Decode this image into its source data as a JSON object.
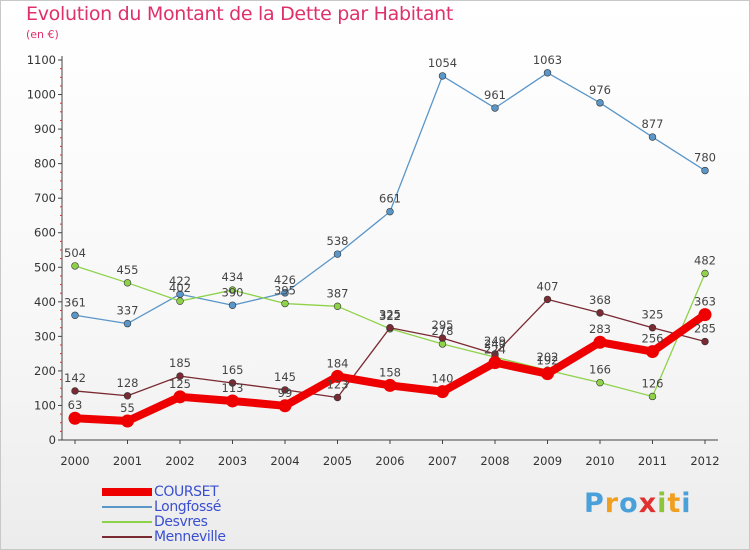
{
  "header": {
    "title": "Evolution du Montant de la Dette par Habitant",
    "subtitle": "(en €)"
  },
  "chart_data": {
    "type": "line",
    "title": "Evolution du Montant de la Dette par Habitant",
    "subtitle": "(en €)",
    "xlabel": "",
    "ylabel": "",
    "x": [
      "2000",
      "2001",
      "2002",
      "2003",
      "2004",
      "2005",
      "2006",
      "2007",
      "2008",
      "2009",
      "2010",
      "2011",
      "2012"
    ],
    "y_ticks": [
      "0",
      "100",
      "200",
      "300",
      "400",
      "500",
      "600",
      "700",
      "800",
      "900",
      "1000",
      "1100"
    ],
    "ylim": [
      0,
      1100
    ],
    "grid": false,
    "legend_position": "bottom-left",
    "series": [
      {
        "name": "COURSET",
        "color": "#ee0000",
        "thick": true,
        "values": [
          63,
          55,
          125,
          113,
          99,
          184,
          158,
          140,
          224,
          192,
          283,
          256,
          363
        ],
        "labels": [
          "63",
          "55",
          "125",
          "113",
          "99",
          "184",
          "158",
          "140",
          "224",
          "192",
          "283",
          "256",
          "363"
        ]
      },
      {
        "name": "Longfossé",
        "color": "#5b96c8",
        "thick": false,
        "values": [
          361,
          337,
          422,
          390,
          426,
          538,
          661,
          1054,
          961,
          1063,
          976,
          877,
          780
        ],
        "labels": [
          "361",
          "337",
          "422",
          "390",
          "426",
          "538",
          "661",
          "1054",
          "961",
          "1063",
          "976",
          "877",
          "780"
        ]
      },
      {
        "name": "Desvres",
        "color": "#8ed24a",
        "thick": false,
        "values": [
          504,
          455,
          402,
          434,
          395,
          387,
          322,
          278,
          240,
          202,
          166,
          126,
          482
        ],
        "labels": [
          "504",
          "455",
          "402",
          "434",
          "395",
          "387",
          "322",
          "278",
          "240",
          "202",
          "166",
          "126",
          "482"
        ]
      },
      {
        "name": "Menneville",
        "color": "#7a2a32",
        "thick": false,
        "values": [
          142,
          128,
          185,
          165,
          145,
          123,
          325,
          295,
          249,
          407,
          368,
          325,
          285
        ],
        "labels": [
          "142",
          "128",
          "185",
          "165",
          "145",
          "123",
          "325",
          "295",
          "249",
          "407",
          "368",
          "325",
          "285"
        ]
      }
    ]
  },
  "logo": {
    "text": "Proxiti",
    "letters": [
      {
        "ch": "P",
        "color": "#4aa0d8"
      },
      {
        "ch": "r",
        "color": "#f0a020"
      },
      {
        "ch": "o",
        "color": "#4aa0d8"
      },
      {
        "ch": "x",
        "color": "#e03030"
      },
      {
        "ch": "i",
        "color": "#8ec43a"
      },
      {
        "ch": "t",
        "color": "#f0a020"
      },
      {
        "ch": "i",
        "color": "#4aa0d8"
      }
    ]
  }
}
